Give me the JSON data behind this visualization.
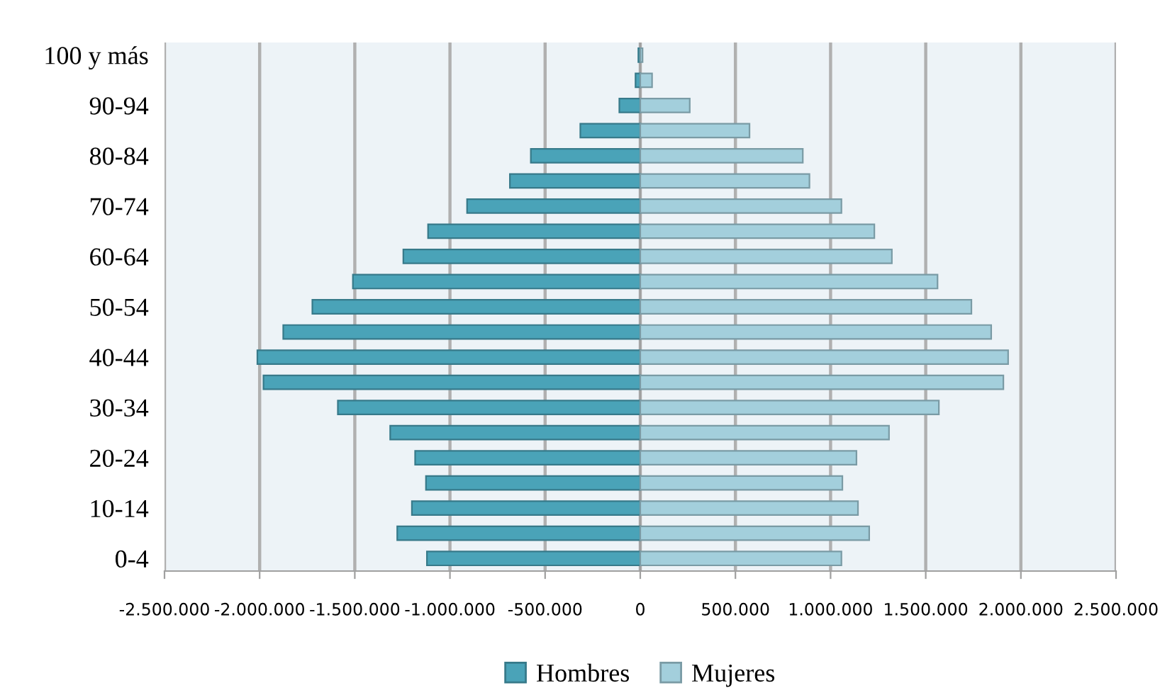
{
  "chart_data": {
    "type": "bar",
    "orientation": "horizontal",
    "stacked": true,
    "categories": [
      "100 y más",
      null,
      "90-94",
      null,
      "80-84",
      null,
      "70-74",
      null,
      "60-64",
      null,
      "50-54",
      null,
      "40-44",
      null,
      "30-34",
      null,
      "20-24",
      null,
      "10-14",
      null,
      "0-4"
    ],
    "series": [
      {
        "name": "Hombres",
        "color": "#4aa3b8",
        "values": [
          -10000,
          -25000,
          -110000,
          -315000,
          -575000,
          -685000,
          -910000,
          -1115000,
          -1245000,
          -1510000,
          -1723000,
          -1876000,
          -2012000,
          -1980000,
          -1589000,
          -1314000,
          -1183000,
          -1126000,
          -1200000,
          -1277000,
          -1121000
        ]
      },
      {
        "name": "Mujeres",
        "color": "#a3cfdc",
        "values": [
          12000,
          62000,
          260000,
          574000,
          854000,
          889000,
          1057000,
          1230000,
          1322000,
          1562000,
          1740000,
          1844000,
          1933000,
          1908000,
          1569000,
          1307000,
          1136000,
          1062000,
          1144000,
          1203000,
          1057000
        ]
      }
    ],
    "xlim": [
      -2500000,
      2500000
    ],
    "xticks": [
      {
        "value": -2500000,
        "label": "-2.500.000"
      },
      {
        "value": -2000000,
        "label": "-2.000.000"
      },
      {
        "value": -1500000,
        "label": "-1.500.000"
      },
      {
        "value": -1000000,
        "label": "-1.000.000"
      },
      {
        "value": -500000,
        "label": "-500.000"
      },
      0,
      {
        "value": 500000,
        "label": "500.000"
      },
      {
        "value": 1000000,
        "label": "1.000.000"
      },
      {
        "value": 1500000,
        "label": "1.500.000"
      },
      {
        "value": 2000000,
        "label": "2.000.000"
      },
      {
        "value": 2500000,
        "label": "2.500.000"
      }
    ],
    "grid": "x",
    "legend": "bottom"
  }
}
